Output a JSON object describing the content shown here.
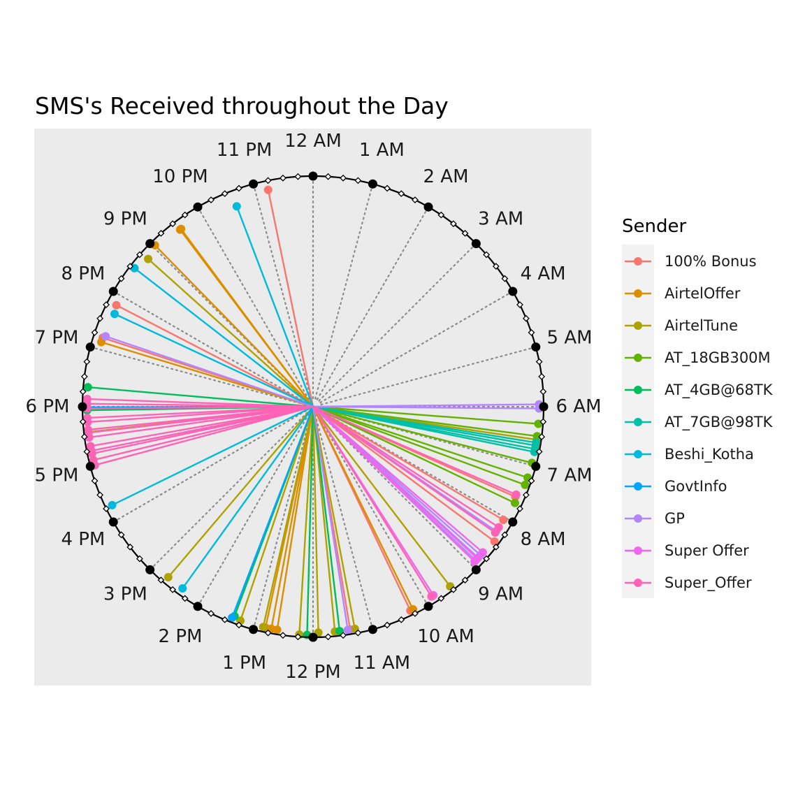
{
  "chart_data": {
    "type": "line",
    "title": "SMS's Received throughout the Day",
    "hour_labels": [
      "12 AM",
      "1 AM",
      "2 AM",
      "3 AM",
      "4 AM",
      "5 AM",
      "6 AM",
      "7 AM",
      "8 AM",
      "9 AM",
      "10 AM",
      "11 AM",
      "12 PM",
      "1 PM",
      "2 PM",
      "3 PM",
      "4 PM",
      "5 PM",
      "6 PM",
      "7 PM",
      "8 PM",
      "9 PM",
      "10 PM",
      "11 PM"
    ],
    "x_unit": "hour of day (0 = 12 AM, clockwise)",
    "y_unit": "relative distance from centre (1 = outer circle)",
    "grid": true,
    "legend": {
      "title": "Sender",
      "position": "right",
      "entries": [
        "100% Bonus",
        "AirtelOffer",
        "AirtelTune",
        "AT_18GB300M",
        "AT_4GB@68TK",
        "AT_7GB@98TK",
        "Beshi_Kotha",
        "GovtInfo",
        "GP",
        "Super Offer",
        "Super_Offer"
      ]
    },
    "colors": {
      "100% Bonus": "#F8766D",
      "AirtelOffer": "#DB8E00",
      "AirtelTune": "#AEA200",
      "AT_18GB300M": "#64B200",
      "AT_4GB@68TK": "#00BD5C",
      "AT_7GB@98TK": "#00C1A7",
      "Beshi_Kotha": "#00BADE",
      "GovtInfo": "#00A6FF",
      "GP": "#B385FF",
      "Super Offer": "#EF67EB",
      "Super_Offer": "#FF63B6"
    },
    "series": [
      {
        "name": "100% Bonus",
        "points": [
          [
            23.22,
            0.96
          ],
          [
            7.6,
            0.96
          ],
          [
            8.05,
            0.96
          ],
          [
            8.44,
            0.98
          ],
          [
            10.3,
            0.98
          ],
          [
            11.37,
            0.98
          ],
          [
            19.21,
            0.96
          ],
          [
            19.82,
            0.96
          ]
        ]
      },
      {
        "name": "AirtelOffer",
        "points": [
          [
            21.56,
            0.96
          ],
          [
            21.54,
            0.96
          ],
          [
            21.04,
            0.98
          ],
          [
            19.13,
            0.96
          ],
          [
            10.25,
            0.98
          ],
          [
            12.61,
            0.98
          ],
          [
            12.71,
            0.98
          ],
          [
            12.81,
            0.98
          ]
        ]
      },
      {
        "name": "AirtelTune",
        "points": [
          [
            6.56,
            0.98
          ],
          [
            9.51,
            0.98
          ],
          [
            11.29,
            0.98
          ],
          [
            11.63,
            0.98
          ],
          [
            11.91,
            0.98
          ],
          [
            12.23,
            0.99
          ],
          [
            12.85,
            0.98
          ],
          [
            13.25,
            0.98
          ],
          [
            14.69,
            0.97
          ],
          [
            17.57,
            0.98
          ],
          [
            20.79,
            0.96
          ]
        ]
      },
      {
        "name": "AT_18GB300M",
        "points": [
          [
            6.29,
            0.98
          ],
          [
            6.5,
            0.98
          ],
          [
            6.96,
            0.98
          ],
          [
            7.22,
            0.98
          ],
          [
            7.35,
            0.98
          ],
          [
            7.7,
            0.97
          ]
        ]
      },
      {
        "name": "AT_4GB@68TK",
        "points": [
          [
            17.94,
            0.98
          ],
          [
            18.33,
            0.98
          ],
          [
            11.55,
            0.98
          ],
          [
            12.1,
            0.99
          ],
          [
            13.37,
            0.97
          ]
        ]
      },
      {
        "name": "AT_7GB@98TK",
        "points": [
          [
            6.61,
            0.98
          ],
          [
            6.66,
            0.98
          ],
          [
            6.72,
            0.98
          ],
          [
            6.77,
            0.98
          ]
        ]
      },
      {
        "name": "Beshi_Kotha",
        "points": [
          [
            22.61,
            0.93
          ],
          [
            20.52,
            0.98
          ],
          [
            19.67,
            0.95
          ],
          [
            16.26,
            0.97
          ],
          [
            14.38,
            0.97
          ]
        ]
      },
      {
        "name": "GovtInfo",
        "points": [
          [
            17.99,
            0.98
          ],
          [
            13.4,
            0.98
          ]
        ]
      },
      {
        "name": "GP",
        "points": [
          [
            5.96,
            0.98
          ],
          [
            6.03,
            0.98
          ],
          [
            8.28,
            0.96
          ],
          [
            8.77,
            0.97
          ],
          [
            8.83,
            0.97
          ],
          [
            8.89,
            0.97
          ],
          [
            11.41,
            0.98
          ],
          [
            19.25,
            0.95
          ]
        ]
      },
      {
        "name": "Super Offer",
        "points": [
          [
            8.92,
            0.97
          ],
          [
            8.85,
            0.97
          ],
          [
            8.71,
            0.97
          ],
          [
            9.83,
            0.97
          ]
        ]
      },
      {
        "name": "Super_Offer",
        "points": [
          [
            7.56,
            0.96
          ],
          [
            8.2,
            0.96
          ],
          [
            8.31,
            0.96
          ],
          [
            9.87,
            0.97
          ],
          [
            17.0,
            0.98
          ],
          [
            17.09,
            0.98
          ],
          [
            17.2,
            0.98
          ],
          [
            17.25,
            0.98
          ],
          [
            17.33,
            0.98
          ],
          [
            17.48,
            0.98
          ],
          [
            17.56,
            0.98
          ],
          [
            17.61,
            0.98
          ],
          [
            17.74,
            0.98
          ],
          [
            17.81,
            0.98
          ],
          [
            17.97,
            0.98
          ],
          [
            18.05,
            0.98
          ],
          [
            18.13,
            0.98
          ]
        ]
      }
    ]
  }
}
